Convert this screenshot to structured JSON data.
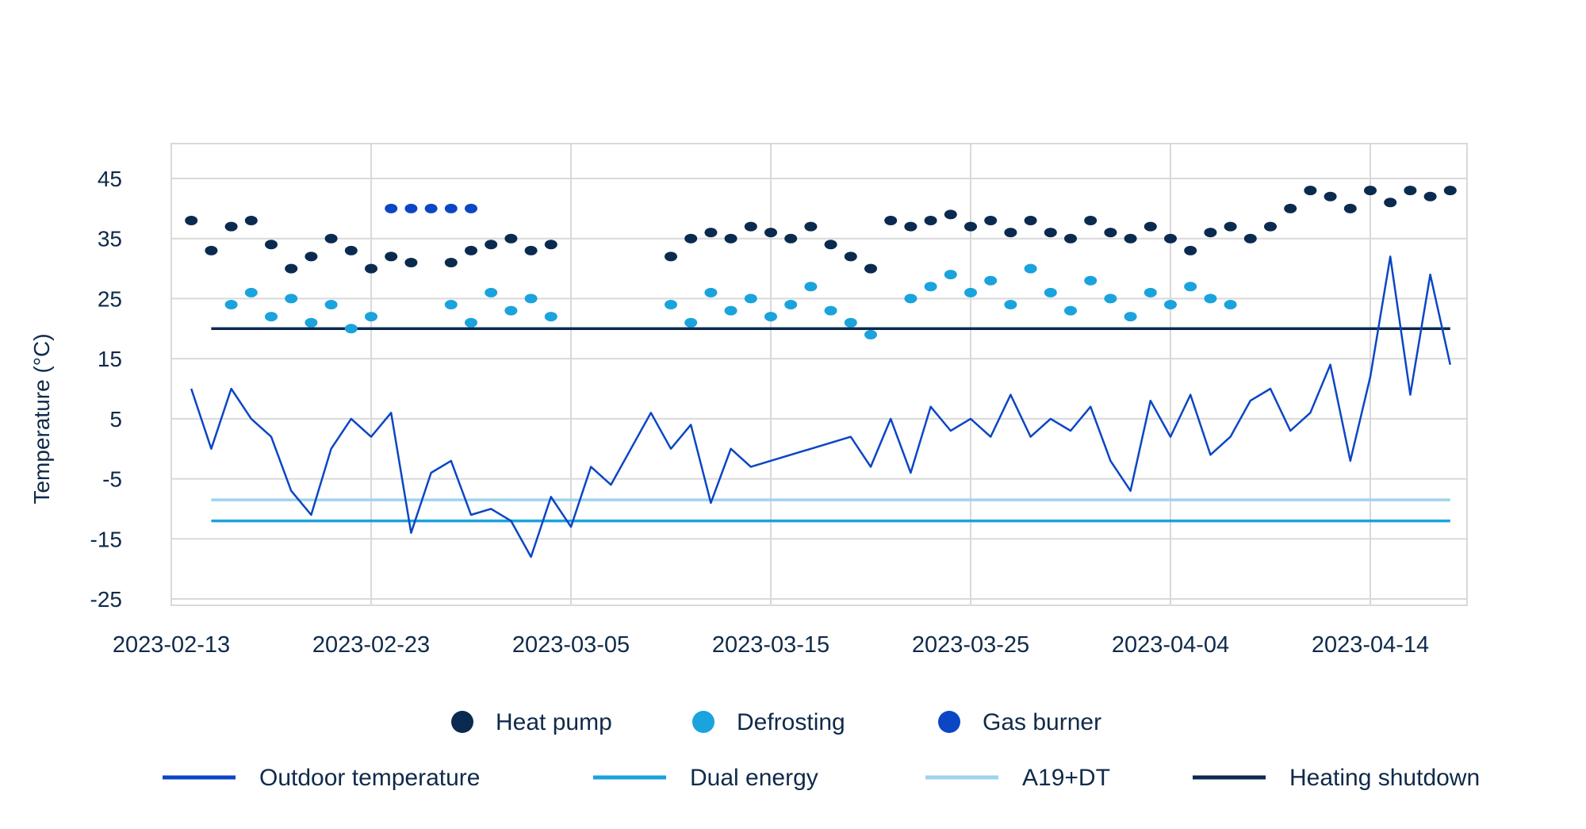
{
  "chart_data": {
    "type": "scatter",
    "ylabel": "Temperature (°C)",
    "xlabel": "",
    "yticks": [
      45,
      35,
      25,
      15,
      5,
      -5,
      -15,
      -25
    ],
    "ylim": [
      -25,
      45
    ],
    "xlim": [
      "2023-02-13",
      "2023-04-19"
    ],
    "xticks": [
      "2023-02-13",
      "2023-02-23",
      "2023-03-05",
      "2023-03-15",
      "2023-03-25",
      "2023-04-04",
      "2023-04-14"
    ],
    "grid": true,
    "legend_position": "bottom",
    "series": [
      {
        "name": "Heat pump",
        "kind": "scatter",
        "color": "#0b2a4f",
        "points": [
          [
            "2023-02-14",
            38
          ],
          [
            "2023-02-15",
            33
          ],
          [
            "2023-02-16",
            37
          ],
          [
            "2023-02-17",
            38
          ],
          [
            "2023-02-18",
            34
          ],
          [
            "2023-02-19",
            30
          ],
          [
            "2023-02-20",
            32
          ],
          [
            "2023-02-21",
            35
          ],
          [
            "2023-02-22",
            33
          ],
          [
            "2023-02-23",
            30
          ],
          [
            "2023-02-24",
            32
          ],
          [
            "2023-02-25",
            31
          ],
          [
            "2023-02-27",
            31
          ],
          [
            "2023-02-28",
            33
          ],
          [
            "2023-03-01",
            34
          ],
          [
            "2023-03-02",
            35
          ],
          [
            "2023-03-03",
            33
          ],
          [
            "2023-03-04",
            34
          ],
          [
            "2023-03-10",
            32
          ],
          [
            "2023-03-11",
            35
          ],
          [
            "2023-03-12",
            36
          ],
          [
            "2023-03-13",
            35
          ],
          [
            "2023-03-14",
            37
          ],
          [
            "2023-03-15",
            36
          ],
          [
            "2023-03-16",
            35
          ],
          [
            "2023-03-17",
            37
          ],
          [
            "2023-03-18",
            34
          ],
          [
            "2023-03-19",
            32
          ],
          [
            "2023-03-20",
            30
          ],
          [
            "2023-03-21",
            38
          ],
          [
            "2023-03-22",
            37
          ],
          [
            "2023-03-23",
            38
          ],
          [
            "2023-03-24",
            39
          ],
          [
            "2023-03-25",
            37
          ],
          [
            "2023-03-26",
            38
          ],
          [
            "2023-03-27",
            36
          ],
          [
            "2023-03-28",
            38
          ],
          [
            "2023-03-29",
            36
          ],
          [
            "2023-03-30",
            35
          ],
          [
            "2023-03-31",
            38
          ],
          [
            "2023-04-01",
            36
          ],
          [
            "2023-04-02",
            35
          ],
          [
            "2023-04-03",
            37
          ],
          [
            "2023-04-04",
            35
          ],
          [
            "2023-04-05",
            33
          ],
          [
            "2023-04-06",
            36
          ],
          [
            "2023-04-07",
            37
          ],
          [
            "2023-04-08",
            35
          ],
          [
            "2023-04-09",
            37
          ],
          [
            "2023-04-10",
            40
          ],
          [
            "2023-04-11",
            43
          ],
          [
            "2023-04-12",
            42
          ],
          [
            "2023-04-13",
            40
          ],
          [
            "2023-04-14",
            43
          ],
          [
            "2023-04-15",
            41
          ],
          [
            "2023-04-16",
            43
          ],
          [
            "2023-04-17",
            42
          ],
          [
            "2023-04-18",
            43
          ]
        ]
      },
      {
        "name": "Defrosting",
        "kind": "scatter",
        "color": "#1aa3dc",
        "points": [
          [
            "2023-02-16",
            24
          ],
          [
            "2023-02-17",
            26
          ],
          [
            "2023-02-18",
            22
          ],
          [
            "2023-02-19",
            25
          ],
          [
            "2023-02-20",
            21
          ],
          [
            "2023-02-21",
            24
          ],
          [
            "2023-02-22",
            20
          ],
          [
            "2023-02-23",
            22
          ],
          [
            "2023-02-27",
            24
          ],
          [
            "2023-02-28",
            21
          ],
          [
            "2023-03-01",
            26
          ],
          [
            "2023-03-02",
            23
          ],
          [
            "2023-03-03",
            25
          ],
          [
            "2023-03-04",
            22
          ],
          [
            "2023-03-10",
            24
          ],
          [
            "2023-03-11",
            21
          ],
          [
            "2023-03-12",
            26
          ],
          [
            "2023-03-13",
            23
          ],
          [
            "2023-03-14",
            25
          ],
          [
            "2023-03-15",
            22
          ],
          [
            "2023-03-16",
            24
          ],
          [
            "2023-03-17",
            27
          ],
          [
            "2023-03-18",
            23
          ],
          [
            "2023-03-19",
            21
          ],
          [
            "2023-03-20",
            19
          ],
          [
            "2023-03-22",
            25
          ],
          [
            "2023-03-23",
            27
          ],
          [
            "2023-03-24",
            29
          ],
          [
            "2023-03-25",
            26
          ],
          [
            "2023-03-26",
            28
          ],
          [
            "2023-03-27",
            24
          ],
          [
            "2023-03-28",
            30
          ],
          [
            "2023-03-29",
            26
          ],
          [
            "2023-03-30",
            23
          ],
          [
            "2023-03-31",
            28
          ],
          [
            "2023-04-01",
            25
          ],
          [
            "2023-04-02",
            22
          ],
          [
            "2023-04-03",
            26
          ],
          [
            "2023-04-04",
            24
          ],
          [
            "2023-04-05",
            27
          ],
          [
            "2023-04-06",
            25
          ],
          [
            "2023-04-07",
            24
          ]
        ]
      },
      {
        "name": "Gas burner",
        "kind": "scatter",
        "color": "#0b46c4",
        "points": [
          [
            "2023-02-24",
            40
          ],
          [
            "2023-02-25",
            40
          ],
          [
            "2023-02-26",
            40
          ],
          [
            "2023-02-27",
            40
          ],
          [
            "2023-02-28",
            40
          ]
        ]
      },
      {
        "name": "Outdoor temperature",
        "kind": "line",
        "color": "#0b46c4",
        "points": [
          [
            "2023-02-14",
            10
          ],
          [
            "2023-02-15",
            0
          ],
          [
            "2023-02-16",
            10
          ],
          [
            "2023-02-17",
            5
          ],
          [
            "2023-02-18",
            2
          ],
          [
            "2023-02-19",
            -7
          ],
          [
            "2023-02-20",
            -11
          ],
          [
            "2023-02-21",
            0
          ],
          [
            "2023-02-22",
            5
          ],
          [
            "2023-02-23",
            2
          ],
          [
            "2023-02-24",
            6
          ],
          [
            "2023-02-25",
            -14
          ],
          [
            "2023-02-26",
            -4
          ],
          [
            "2023-02-27",
            -2
          ],
          [
            "2023-02-28",
            -11
          ],
          [
            "2023-03-01",
            -10
          ],
          [
            "2023-03-02",
            -12
          ],
          [
            "2023-03-03",
            -18
          ],
          [
            "2023-03-04",
            -8
          ],
          [
            "2023-03-05",
            -13
          ],
          [
            "2023-03-06",
            -3
          ],
          [
            "2023-03-07",
            -6
          ],
          [
            "2023-03-08",
            0
          ],
          [
            "2023-03-09",
            6
          ],
          [
            "2023-03-10",
            0
          ],
          [
            "2023-03-11",
            4
          ],
          [
            "2023-03-12",
            -9
          ],
          [
            "2023-03-13",
            0
          ],
          [
            "2023-03-14",
            -3
          ],
          [
            "2023-03-19",
            2
          ],
          [
            "2023-03-20",
            -3
          ],
          [
            "2023-03-21",
            5
          ],
          [
            "2023-03-22",
            -4
          ],
          [
            "2023-03-23",
            7
          ],
          [
            "2023-03-24",
            3
          ],
          [
            "2023-03-25",
            5
          ],
          [
            "2023-03-26",
            2
          ],
          [
            "2023-03-27",
            9
          ],
          [
            "2023-03-28",
            2
          ],
          [
            "2023-03-29",
            5
          ],
          [
            "2023-03-30",
            3
          ],
          [
            "2023-03-31",
            7
          ],
          [
            "2023-04-01",
            -2
          ],
          [
            "2023-04-02",
            -7
          ],
          [
            "2023-04-03",
            8
          ],
          [
            "2023-04-04",
            2
          ],
          [
            "2023-04-05",
            9
          ],
          [
            "2023-04-06",
            -1
          ],
          [
            "2023-04-07",
            2
          ],
          [
            "2023-04-08",
            8
          ],
          [
            "2023-04-09",
            10
          ],
          [
            "2023-04-10",
            3
          ],
          [
            "2023-04-11",
            6
          ],
          [
            "2023-04-12",
            14
          ],
          [
            "2023-04-13",
            -2
          ],
          [
            "2023-04-14",
            12
          ],
          [
            "2023-04-15",
            32
          ],
          [
            "2023-04-16",
            9
          ],
          [
            "2023-04-17",
            29
          ],
          [
            "2023-04-18",
            14
          ]
        ]
      },
      {
        "name": "Dual energy",
        "kind": "hline",
        "color": "#1aa3dc",
        "y": -12,
        "x_range": [
          "2023-02-15",
          "2023-04-18"
        ]
      },
      {
        "name": "A19+DT",
        "kind": "hline",
        "color": "#9fd3ee",
        "y": -8.5,
        "x_range": [
          "2023-02-15",
          "2023-04-18"
        ]
      },
      {
        "name": "Heating shutdown",
        "kind": "hline",
        "color": "#0b2a4f",
        "y": 20,
        "x_range": [
          "2023-02-15",
          "2023-04-18"
        ]
      }
    ]
  }
}
